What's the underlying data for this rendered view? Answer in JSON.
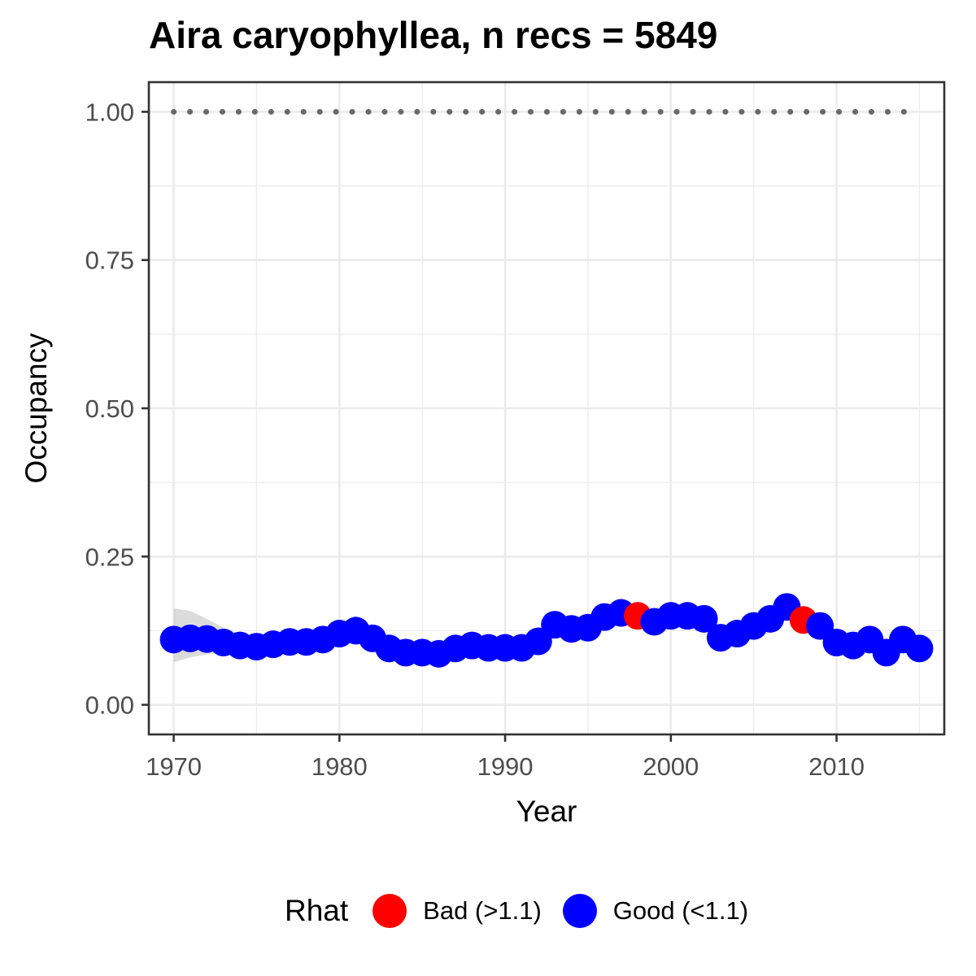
{
  "chart_data": {
    "type": "scatter",
    "title": "Aira caryophyllea, n recs = 5849",
    "xlabel": "Year",
    "ylabel": "Occupancy",
    "xlim": [
      1968.5,
      2016.5
    ],
    "ylim": [
      -0.05,
      1.05
    ],
    "x_ticks": [
      1970,
      1980,
      1990,
      2000,
      2010
    ],
    "y_ticks": [
      0.0,
      0.25,
      0.5,
      0.75,
      1.0
    ],
    "y_tick_labels": [
      "0.00",
      "0.25",
      "0.50",
      "0.75",
      "1.00"
    ],
    "grid": true,
    "legend": {
      "title": "Rhat",
      "position": "bottom",
      "entries": [
        {
          "label": "Bad (>1.1)",
          "color": "#ff0000"
        },
        {
          "label": "Good (<1.1)",
          "color": "#0000ff"
        }
      ]
    },
    "series": [
      {
        "x": [
          1970,
          1971,
          1972,
          1973,
          1974,
          1975,
          1976,
          1977,
          1978,
          1979,
          1980,
          1981,
          1982,
          1983,
          1984,
          1985,
          1986,
          1987,
          1988,
          1989,
          1990,
          1991,
          1992,
          1993,
          1994,
          1995,
          1996,
          1997,
          1998,
          1999,
          2000,
          2001,
          2002,
          2003,
          2004,
          2005,
          2006,
          2007,
          2008,
          2009,
          2010,
          2011,
          2012,
          2013,
          2014,
          2015
        ],
        "y": [
          0.11,
          0.112,
          0.111,
          0.105,
          0.1,
          0.098,
          0.102,
          0.106,
          0.106,
          0.11,
          0.12,
          0.125,
          0.112,
          0.095,
          0.088,
          0.088,
          0.086,
          0.095,
          0.1,
          0.096,
          0.096,
          0.096,
          0.107,
          0.135,
          0.128,
          0.13,
          0.148,
          0.155,
          0.15,
          0.14,
          0.15,
          0.15,
          0.145,
          0.113,
          0.12,
          0.133,
          0.145,
          0.165,
          0.143,
          0.133,
          0.105,
          0.1,
          0.11,
          0.088,
          0.11,
          0.095
        ],
        "rhat": [
          "Good",
          "Good",
          "Good",
          "Good",
          "Good",
          "Good",
          "Good",
          "Good",
          "Good",
          "Good",
          "Good",
          "Good",
          "Good",
          "Good",
          "Good",
          "Good",
          "Good",
          "Good",
          "Good",
          "Good",
          "Good",
          "Good",
          "Good",
          "Good",
          "Good",
          "Good",
          "Good",
          "Good",
          "Bad",
          "Good",
          "Good",
          "Good",
          "Good",
          "Good",
          "Good",
          "Good",
          "Good",
          "Good",
          "Bad",
          "Good",
          "Good",
          "Good",
          "Good",
          "Good",
          "Good",
          "Good"
        ],
        "ci_lower": [
          0.072,
          0.08,
          0.085,
          0.088,
          0.09,
          0.09,
          0.092,
          0.095,
          0.097,
          0.1,
          0.11,
          0.115,
          0.104,
          0.088,
          0.082,
          0.082,
          0.08,
          0.089,
          0.094,
          0.09,
          0.09,
          0.09,
          0.101,
          0.128,
          0.121,
          0.123,
          0.141,
          0.148,
          0.143,
          0.133,
          0.143,
          0.143,
          0.138,
          0.106,
          0.113,
          0.126,
          0.138,
          0.158,
          0.136,
          0.126,
          0.098,
          0.093,
          0.103,
          0.081,
          0.103,
          0.088
        ],
        "ci_upper": [
          0.163,
          0.158,
          0.145,
          0.13,
          0.12,
          0.115,
          0.115,
          0.118,
          0.118,
          0.124,
          0.138,
          0.15,
          0.124,
          0.103,
          0.095,
          0.095,
          0.093,
          0.102,
          0.107,
          0.103,
          0.103,
          0.103,
          0.114,
          0.143,
          0.135,
          0.137,
          0.155,
          0.162,
          0.157,
          0.147,
          0.157,
          0.157,
          0.152,
          0.12,
          0.127,
          0.14,
          0.152,
          0.172,
          0.15,
          0.14,
          0.112,
          0.107,
          0.117,
          0.095,
          0.117,
          0.102
        ]
      }
    ],
    "reference_line": {
      "y": 1.0,
      "style": "dotted",
      "color": "#696969"
    }
  }
}
